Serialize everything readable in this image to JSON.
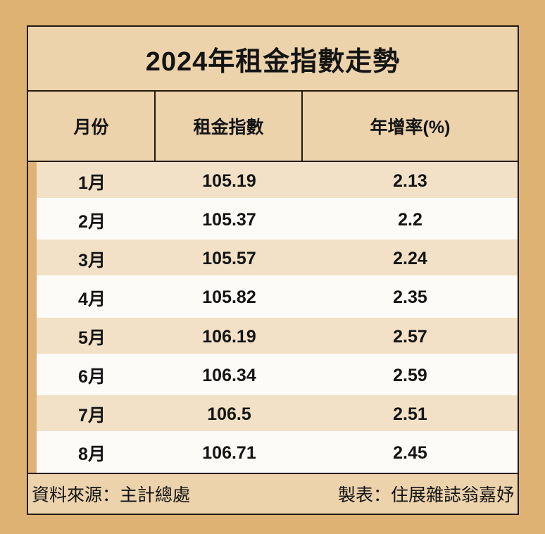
{
  "chart_data": {
    "type": "table",
    "title": "2024年租金指數走勢",
    "columns": [
      "月份",
      "租金指數",
      "年增率(%)"
    ],
    "rows": [
      [
        "1月",
        "105.19",
        "2.13"
      ],
      [
        "2月",
        "105.37",
        "2.2"
      ],
      [
        "3月",
        "105.57",
        "2.24"
      ],
      [
        "4月",
        "105.82",
        "2.35"
      ],
      [
        "5月",
        "106.19",
        "2.57"
      ],
      [
        "6月",
        "106.34",
        "2.59"
      ],
      [
        "7月",
        "106.5",
        "2.51"
      ],
      [
        "8月",
        "106.71",
        "2.45"
      ]
    ],
    "row_stripe_pattern": [
      "tan",
      "white"
    ],
    "legend_position": "none",
    "grid": "header-only"
  },
  "footer": {
    "source": "資料來源：主計總處",
    "credit": "製表：住展雜誌翁嘉妤"
  },
  "colors": {
    "outer-bg": "#ddb273",
    "panel-tan": "#ecd3ac",
    "row-tan": "#f2e1c6",
    "row-white": "#fdfbf8",
    "line": "#241b0e",
    "ink": "#141414"
  }
}
